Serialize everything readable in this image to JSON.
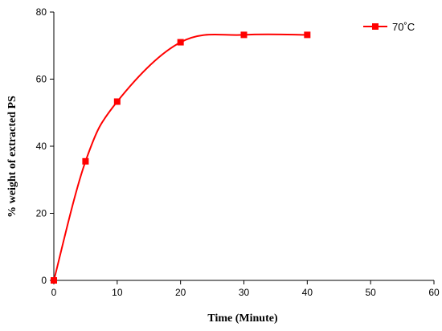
{
  "chart_data": {
    "type": "line",
    "title": "",
    "xlabel": "Time (Minute)",
    "ylabel": "% weight of extracted PS",
    "xlim": [
      0,
      60
    ],
    "ylim": [
      0,
      80
    ],
    "x_ticks": [
      0,
      10,
      20,
      30,
      40,
      50,
      60
    ],
    "y_ticks": [
      0,
      20,
      40,
      60,
      80
    ],
    "grid": false,
    "legend_position": "top-right",
    "series": [
      {
        "name": "70˚C",
        "color": "#ff0000",
        "marker": "square",
        "smooth": true,
        "x": [
          0,
          5,
          10,
          20,
          30,
          40
        ],
        "y": [
          0,
          35.5,
          53.3,
          71,
          73.2,
          73.2
        ]
      }
    ]
  }
}
